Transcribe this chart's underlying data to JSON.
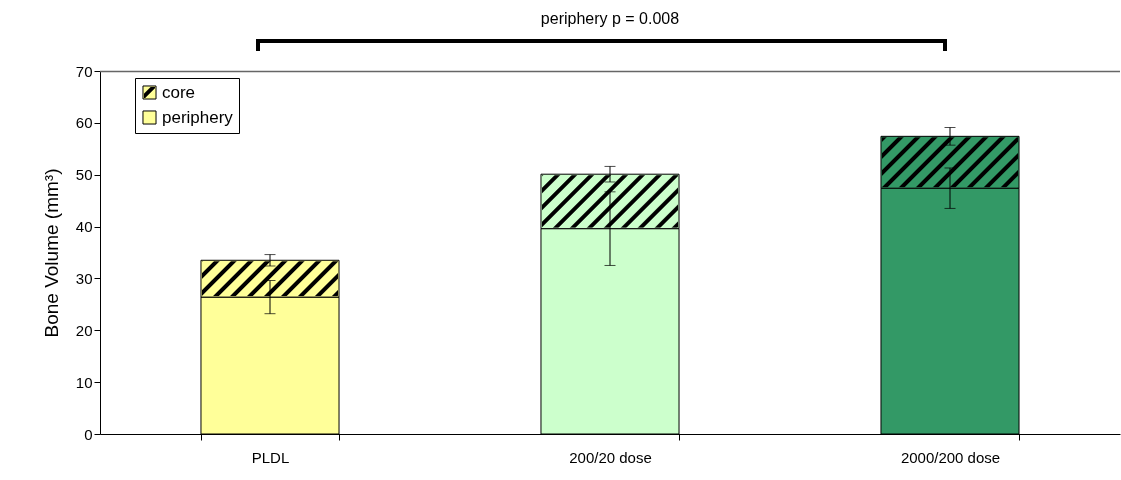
{
  "chart_data": {
    "type": "bar",
    "stacked": true,
    "ylabel": "Bone Volume (mm³)",
    "categories": [
      "PLDL",
      "200/20 dose",
      "2000/200 dose"
    ],
    "series": [
      {
        "name": "periphery",
        "colors": [
          "#ffff99",
          "#ccffcc",
          "#339966"
        ],
        "values": [
          26.4,
          39.6,
          47.4
        ],
        "errors": [
          3.2,
          7.1,
          3.9
        ]
      },
      {
        "name": "core",
        "colors": [
          "#ffff99",
          "#ccffcc",
          "#339966"
        ],
        "values": [
          7.1,
          10.5,
          10.0
        ],
        "errors": [
          1.1,
          1.5,
          1.7
        ]
      }
    ],
    "ylim": [
      0,
      70
    ],
    "yticks": [
      0,
      10,
      20,
      30,
      40,
      50,
      60,
      70
    ],
    "grid": false,
    "legend": "top left",
    "annotations": [
      "periphery p = 0.008"
    ]
  }
}
